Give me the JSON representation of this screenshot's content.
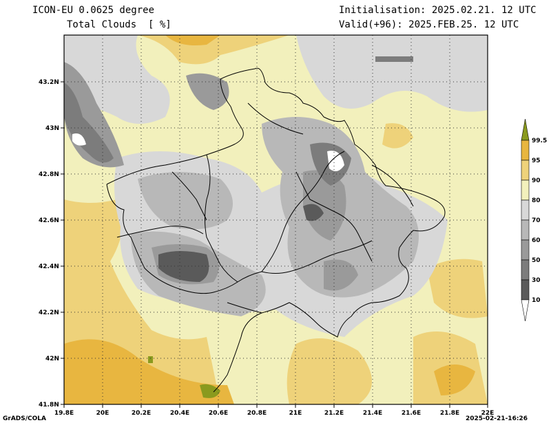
{
  "header": {
    "model": "ICON-EU 0.0625 degree",
    "variable": "Total Clouds  [ %]",
    "init": "Initialisation: 2025.02.21. 12 UTC",
    "valid": "Valid(+96): 2025.FEB.25. 12 UTC"
  },
  "footer": {
    "left": "GrADS/COLA",
    "right": "2025-02-21-16:26"
  },
  "axes": {
    "x_ticks": [
      "19.8E",
      "20E",
      "20.2E",
      "20.4E",
      "20.6E",
      "20.8E",
      "21E",
      "21.2E",
      "21.4E",
      "21.6E",
      "21.8E",
      "22E"
    ],
    "y_ticks": [
      "41.8N",
      "42N",
      "42.2N",
      "42.4N",
      "42.6N",
      "42.8N",
      "43N",
      "43.2N"
    ]
  },
  "colorbar": {
    "levels": [
      "10",
      "30",
      "50",
      "60",
      "70",
      "80",
      "90",
      "95",
      "99.5"
    ],
    "colors": {
      "lt10": "#ffffff",
      "10-30": "#5a5a5a",
      "30-50": "#7c7c7c",
      "50-60": "#9a9a9a",
      "60-70": "#b8b8b8",
      "70-80": "#d8d8d8",
      "80-90": "#f2f0bc",
      "90-95": "#eed27a",
      "95-99.5": "#e8b640",
      "gt99.5": "#8a9a1e"
    }
  },
  "map": {
    "region": "Kosovo and surroundings",
    "lon_range": [
      19.8,
      22.0
    ],
    "lat_range": [
      41.8,
      43.4
    ],
    "gridlines": true
  }
}
